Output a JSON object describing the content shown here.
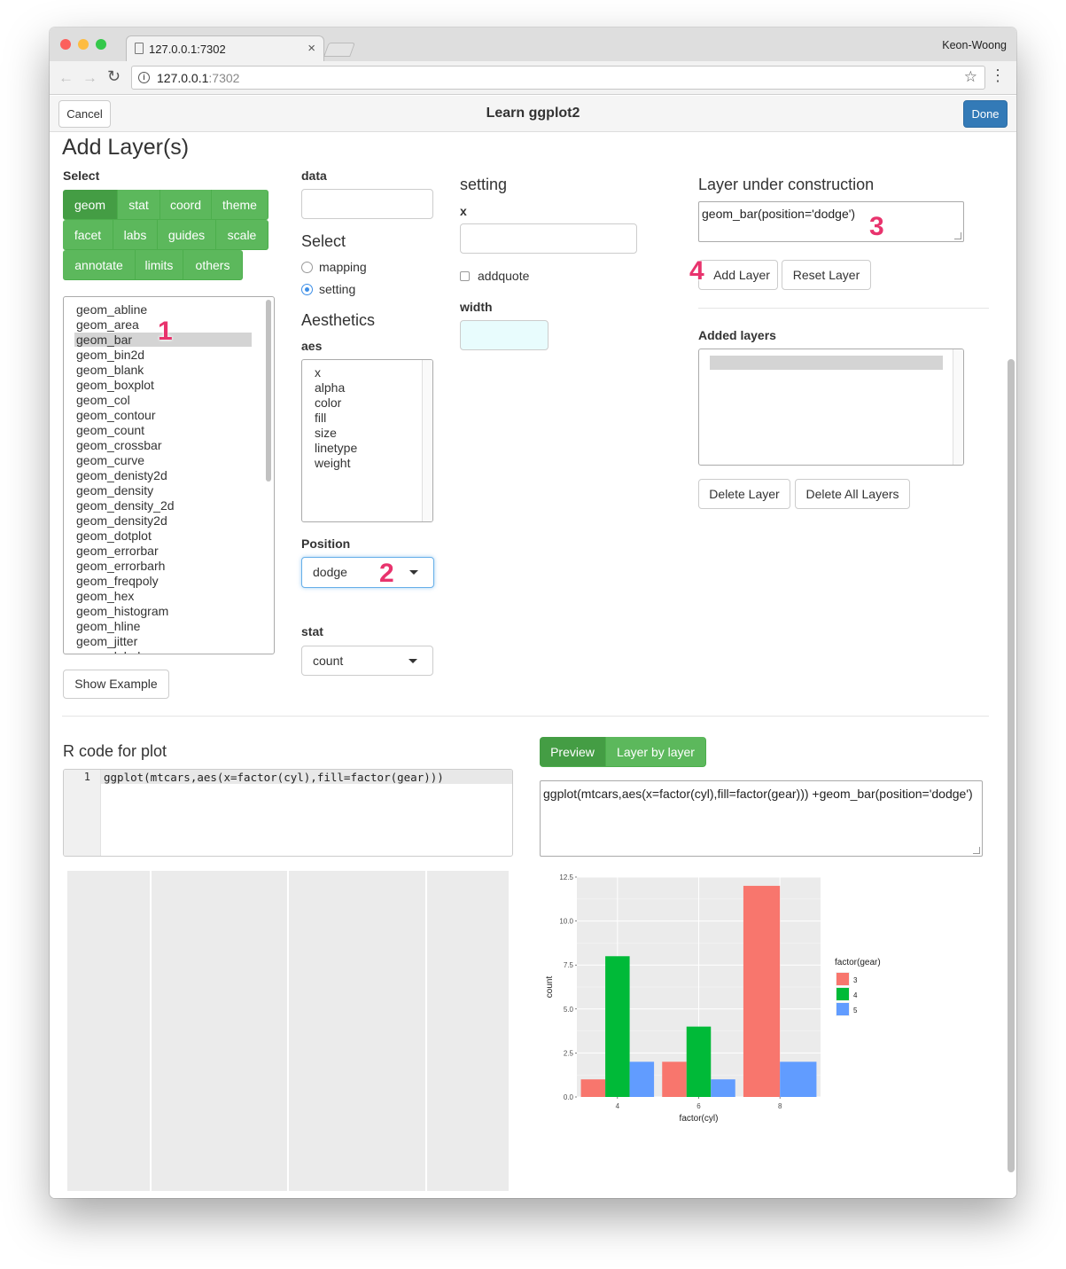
{
  "browser": {
    "tab_title": "127.0.0.1:7302",
    "profile_name": "Keon-Woong",
    "url_host": "127.0.0.1",
    "url_port": ":7302",
    "icons": [
      "back-arrow-icon",
      "forward-arrow-icon",
      "reload-icon",
      "info-icon",
      "star-icon",
      "menu-icon"
    ]
  },
  "gadget": {
    "cancel_label": "Cancel",
    "title": "Learn ggplot2",
    "done_label": "Done"
  },
  "page": {
    "heading": "Add Layer(s)",
    "select_label": "Select",
    "category_buttons": [
      [
        "geom",
        "stat",
        "coord",
        "theme"
      ],
      [
        "facet",
        "labs",
        "guides",
        "scale"
      ],
      [
        "annotate",
        "limits",
        "others"
      ]
    ],
    "active_category": "geom",
    "geom_list": [
      "geom_abline",
      "geom_area",
      "geom_bar",
      "geom_bin2d",
      "geom_blank",
      "geom_boxplot",
      "geom_col",
      "geom_contour",
      "geom_count",
      "geom_crossbar",
      "geom_curve",
      "geom_denisty2d",
      "geom_density",
      "geom_density_2d",
      "geom_density2d",
      "geom_dotplot",
      "geom_errorbar",
      "geom_errorbarh",
      "geom_freqpoly",
      "geom_hex",
      "geom_histogram",
      "geom_hline",
      "geom_jitter",
      "geom_label"
    ],
    "selected_geom": "geom_bar",
    "show_example_label": "Show Example",
    "data_label": "data",
    "data_value": "",
    "select2_label": "Select",
    "radio_options": [
      "mapping",
      "setting"
    ],
    "radio_selected": "setting",
    "aesthetics_label": "Aesthetics",
    "aes_label": "aes",
    "aes_list": [
      "x",
      "alpha",
      "color",
      "fill",
      "size",
      "linetype",
      "weight"
    ],
    "position_label": "Position",
    "position_value": "dodge",
    "stat_label": "stat",
    "stat_value": "count",
    "setting_label": "setting",
    "x_label": "x",
    "x_value": "",
    "addquote_label": "addquote",
    "width_label": "width",
    "width_value": "",
    "luc_label": "Layer under construction",
    "luc_value": "geom_bar(position='dodge')",
    "add_layer_label": "Add Layer",
    "reset_layer_label": "Reset Layer",
    "added_layers_label": "Added layers",
    "delete_layer_label": "Delete Layer",
    "delete_all_label": "Delete All Layers",
    "rcode_label": "R code for plot",
    "code_line_number": "1",
    "code_line": "ggplot(mtcars,aes(x=factor(cyl),fill=factor(gear)))",
    "preview_tab": "Preview",
    "layer_tab": "Layer by layer",
    "preview_code": "ggplot(mtcars,aes(x=factor(cyl),fill=factor(gear))) +geom_bar(position='dodge')",
    "annotations": [
      "1",
      "2",
      "3",
      "4"
    ]
  },
  "colors": {
    "green": "#5cb85c",
    "green_active": "#449d44",
    "primary": "#337ab7",
    "annotation": "#e8336d",
    "width_input_bg": "#e8fcfd"
  },
  "chart_data": {
    "type": "bar",
    "categories": [
      "4",
      "6",
      "8"
    ],
    "series": [
      {
        "name": "3",
        "values": [
          1,
          2,
          12
        ],
        "color": "#f8766d"
      },
      {
        "name": "4",
        "values": [
          8,
          4,
          0
        ],
        "color": "#00ba38"
      },
      {
        "name": "5",
        "values": [
          2,
          1,
          2
        ],
        "color": "#619cff"
      }
    ],
    "xlabel": "factor(cyl)",
    "ylabel": "count",
    "legend_title": "factor(gear)",
    "yticks": [
      "0.0",
      "2.5",
      "5.0",
      "7.5",
      "10.0",
      "12.5"
    ],
    "ylim": [
      0,
      12.5
    ],
    "legend_position": "right",
    "grid": true
  }
}
